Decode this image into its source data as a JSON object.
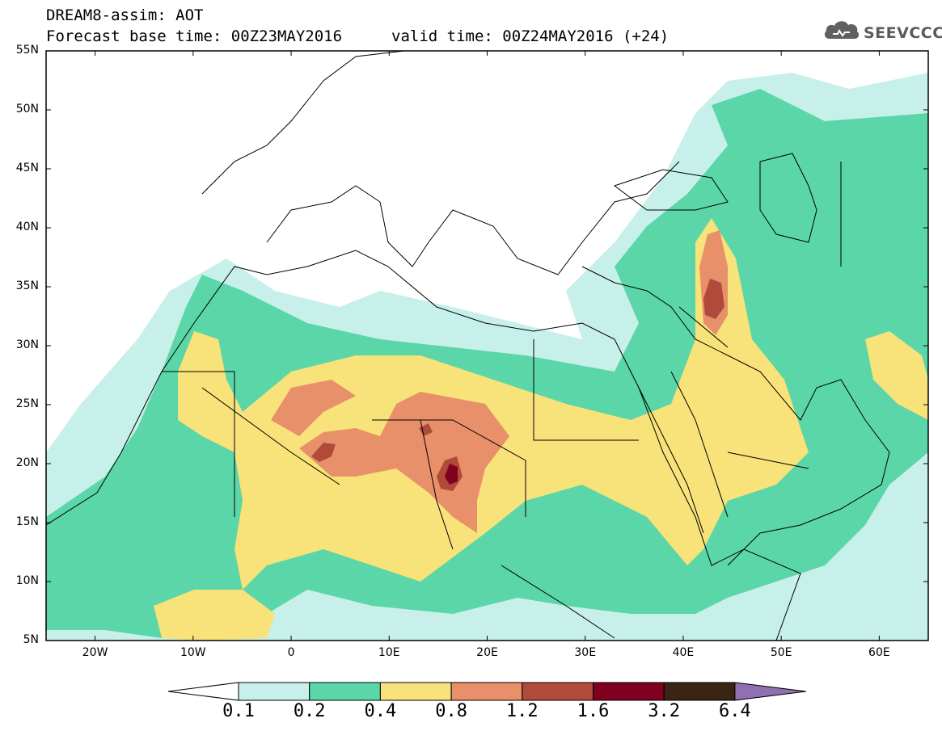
{
  "header": {
    "title": "DREAM8-assim: AOT",
    "base_time": "Forecast base time: 00Z23MAY2016",
    "valid_time": "valid time: 00Z24MAY2016 (+24)"
  },
  "logo": {
    "text": "SEEVCCC",
    "icon": "cloud-icon"
  },
  "map": {
    "lat_labels": [
      "55N",
      "50N",
      "45N",
      "40N",
      "35N",
      "30N",
      "25N",
      "20N",
      "15N",
      "10N",
      "5N"
    ],
    "lon_labels": [
      "20W",
      "10W",
      "0",
      "10E",
      "20E",
      "30E",
      "40E",
      "50E",
      "60E"
    ],
    "lon_range": [
      -25,
      65
    ],
    "lat_range": [
      5,
      55
    ]
  },
  "colorbar": {
    "thresholds": [
      "0.1",
      "0.2",
      "0.4",
      "0.8",
      "1.2",
      "1.6",
      "3.2",
      "6.4"
    ],
    "colors": [
      "#ffffff",
      "#c8f0ea",
      "#5ad6a8",
      "#f8e27a",
      "#e8906a",
      "#b04a3a",
      "#800020",
      "#3a2414",
      "#9070b0"
    ]
  },
  "chart_data": {
    "type": "heatmap",
    "variable": "AOT",
    "levels": [
      0.1,
      0.2,
      0.4,
      0.8,
      1.2,
      1.6,
      3.2,
      6.4
    ],
    "xlim": [
      -25,
      65
    ],
    "ylim": [
      5,
      55
    ]
  }
}
